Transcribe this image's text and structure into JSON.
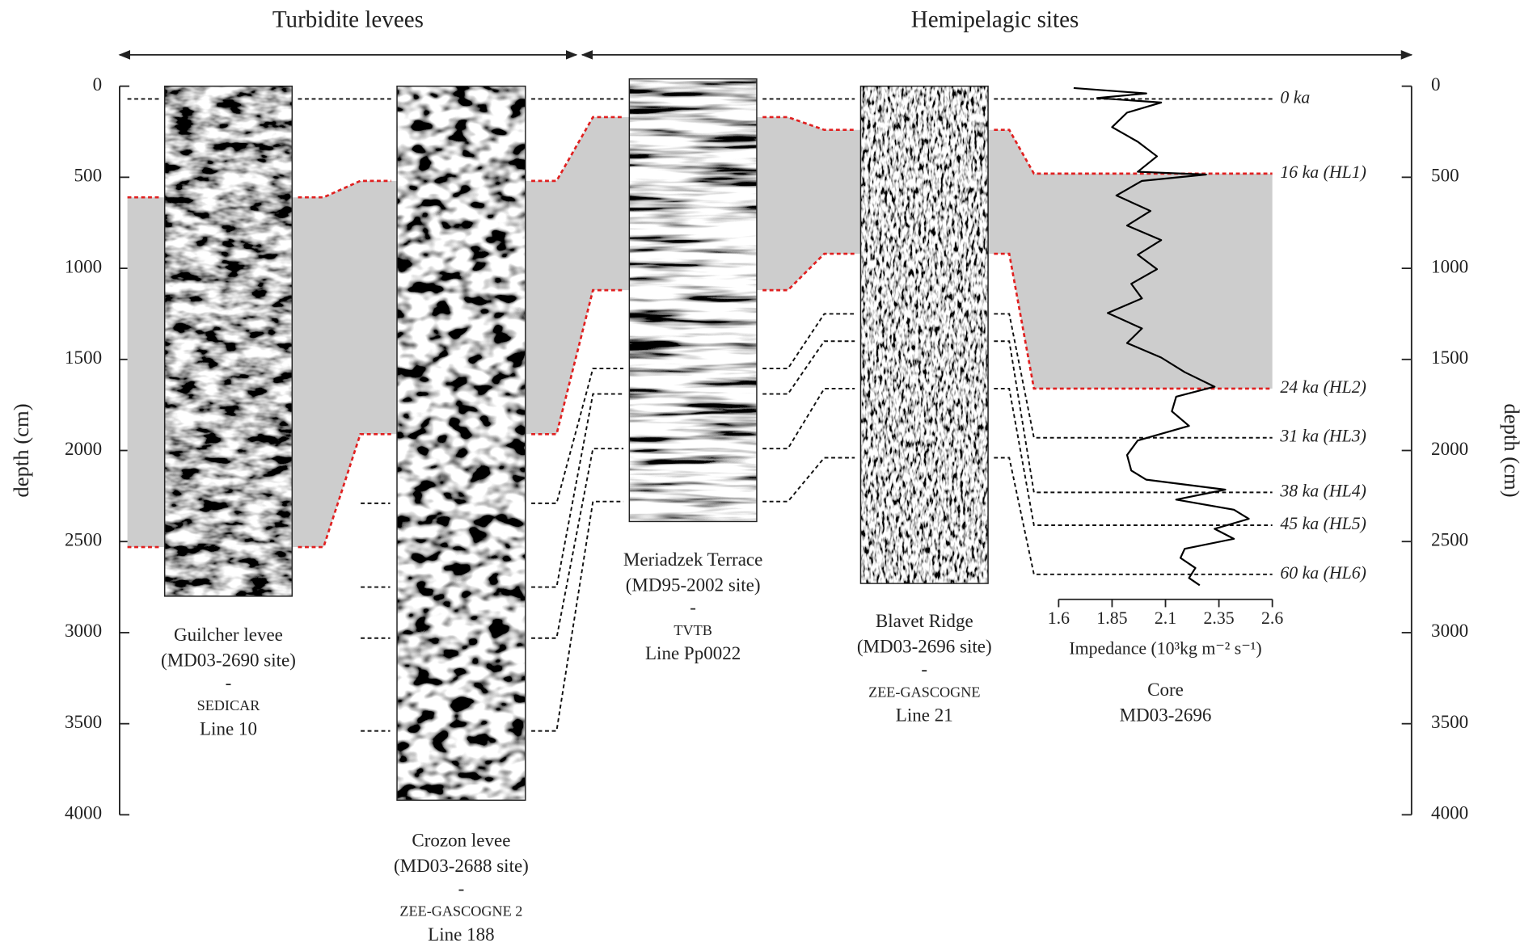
{
  "groups": [
    {
      "label": "Turbidite levees"
    },
    {
      "label": "Hemipelagic sites"
    }
  ],
  "depth_axis": {
    "label": "depth (cm)",
    "ylim": [
      0,
      4000
    ],
    "yticks": [
      0,
      500,
      1000,
      1500,
      2000,
      2500,
      3000,
      3500,
      4000
    ]
  },
  "panels": [
    {
      "caption": [
        "Guilcher levee",
        "(MD03-2690 site)",
        "-",
        "SEDICAR",
        "Line 10"
      ],
      "depth_range": [
        0,
        2800
      ]
    },
    {
      "caption": [
        "Crozon levee",
        "(MD03-2688 site)",
        "-",
        "ZEE-GASCOGNE 2",
        "Line 188"
      ],
      "depth_range": [
        0,
        3920
      ]
    },
    {
      "caption": [
        "Meriadzek Terrace",
        "(MD95-2002 site)",
        "-",
        "TVTB",
        "Line Pp0022"
      ],
      "depth_range": [
        -40,
        2390
      ]
    },
    {
      "caption": [
        "Blavet Ridge",
        "(MD03-2696 site)",
        "-",
        "ZEE-GASCOGNE",
        "Line 21"
      ],
      "depth_range": [
        0,
        2730
      ]
    }
  ],
  "core": {
    "caption": [
      "Core",
      "MD03-2696"
    ]
  },
  "horizons": {
    "band_color": "#cdcdcd",
    "items": [
      {
        "label": "0 ka",
        "color": "#111111",
        "depths": [
          70,
          70,
          70,
          70,
          70
        ]
      },
      {
        "label": "16 ka (HL1)",
        "color": "#e02020",
        "depths": [
          610,
          520,
          170,
          240,
          480
        ]
      },
      {
        "label": "24 ka (HL2)",
        "color": "#e02020",
        "depths": [
          2530,
          1910,
          1120,
          920,
          1660
        ]
      },
      {
        "label": "31 ka (HL3)",
        "color": "#111111",
        "depths": [
          null,
          2290,
          1550,
          1250,
          1930
        ]
      },
      {
        "label": "38 ka (HL4)",
        "color": "#111111",
        "depths": [
          null,
          2750,
          1690,
          1400,
          2230
        ]
      },
      {
        "label": "45 ka (HL5)",
        "color": "#111111",
        "depths": [
          null,
          3030,
          1990,
          1660,
          2410
        ]
      },
      {
        "label": "60 ka (HL6)",
        "color": "#111111",
        "depths": [
          null,
          3540,
          2280,
          2040,
          2680
        ]
      }
    ]
  },
  "impedance": {
    "label": "Impedance (10³kg m⁻² s⁻¹)",
    "xlim": [
      1.6,
      2.6
    ],
    "xticks": [
      1.6,
      1.85,
      2.1,
      2.35,
      2.6
    ],
    "color": "#000000",
    "depth": [
      10,
      40,
      65,
      90,
      145,
      225,
      305,
      385,
      470,
      485,
      520,
      600,
      685,
      765,
      845,
      925,
      1005,
      1085,
      1165,
      1245,
      1330,
      1410,
      1490,
      1570,
      1650,
      1705,
      1785,
      1865,
      1945,
      2025,
      2110,
      2160,
      2215,
      2270,
      2325,
      2375,
      2430,
      2485,
      2540,
      2590,
      2645,
      2700,
      2740
    ],
    "values": [
      1.67,
      2.01,
      1.78,
      2.08,
      1.92,
      1.85,
      1.97,
      2.06,
      1.97,
      2.29,
      1.99,
      1.87,
      2.03,
      1.92,
      2.08,
      1.97,
      2.06,
      1.94,
      1.99,
      1.83,
      1.99,
      1.92,
      2.08,
      2.19,
      2.33,
      2.15,
      2.13,
      2.21,
      1.97,
      1.92,
      1.94,
      2.01,
      2.38,
      2.15,
      2.42,
      2.49,
      2.33,
      2.42,
      2.19,
      2.17,
      2.24,
      2.21,
      2.26
    ]
  }
}
